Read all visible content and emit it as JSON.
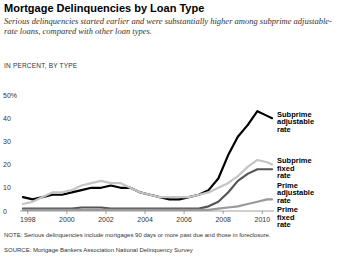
{
  "chart_data": {
    "type": "line",
    "title": "Mortgage Delinquencies by Loan Type",
    "subtitle": "Serious delinquencies started earlier and were substantially higher among subprime adjustable-rate loans, compared with other loan types.",
    "y_label": "IN PERCENT, BY TYPE",
    "note": "NOTE: Serious delinquencies include mortgages 90 days or more past due and those in foreclosure.",
    "source": "SOURCE: Mortgage Bankers Association National Delinquency Survey",
    "x": [
      1997.75,
      1998.25,
      1998.75,
      1999.25,
      1999.75,
      2000.25,
      2000.75,
      2001.25,
      2001.75,
      2002.25,
      2002.75,
      2003.25,
      2003.75,
      2004.25,
      2004.75,
      2005.25,
      2005.75,
      2006.25,
      2006.75,
      2007.25,
      2007.75,
      2008.25,
      2008.75,
      2009.25,
      2009.75,
      2010.25,
      2010.5
    ],
    "series": [
      {
        "name": "Subprime adjustable rate",
        "color": "#000000",
        "values": [
          6,
          5,
          6,
          7,
          7,
          8,
          9,
          10,
          10,
          11,
          10,
          10,
          8,
          7,
          6,
          5,
          5,
          6,
          7,
          9,
          14,
          24,
          32,
          37,
          43,
          41,
          40
        ]
      },
      {
        "name": "Subprime fixed rate",
        "color": "#c4c4c4",
        "values": [
          3,
          4,
          6,
          8,
          8,
          9,
          11,
          12,
          13,
          12,
          12,
          10,
          8,
          7,
          6,
          6,
          6,
          6,
          7,
          8,
          10,
          12,
          15,
          19,
          22,
          21,
          20
        ]
      },
      {
        "name": "Prime adjustable rate",
        "color": "#555555",
        "values": [
          1,
          1,
          1,
          1,
          1,
          1,
          1.5,
          1.5,
          1.5,
          1,
          1,
          1,
          1,
          1,
          1,
          1,
          1,
          1,
          1,
          2,
          4,
          8,
          13,
          16,
          18,
          18,
          18
        ]
      },
      {
        "name": "Prime fixed rate",
        "color": "#999999",
        "values": [
          0.5,
          0.5,
          0.5,
          0.5,
          0.5,
          0.5,
          0.5,
          0.5,
          0.5,
          0.5,
          0.5,
          0.5,
          0.5,
          0.5,
          0.5,
          0.5,
          0.5,
          0.5,
          0.5,
          0.5,
          1,
          1.5,
          2,
          3,
          4,
          5,
          5
        ]
      }
    ],
    "xlim": [
      1997.6,
      2010.6
    ],
    "ylim": [
      0,
      50
    ],
    "xticks": [
      1998,
      2000,
      2002,
      2004,
      2006,
      2008,
      2010
    ],
    "yticks": [
      0,
      10,
      20,
      30,
      40,
      {
        "value": 50,
        "label": "50%"
      }
    ],
    "grid": false,
    "legend": "right"
  }
}
